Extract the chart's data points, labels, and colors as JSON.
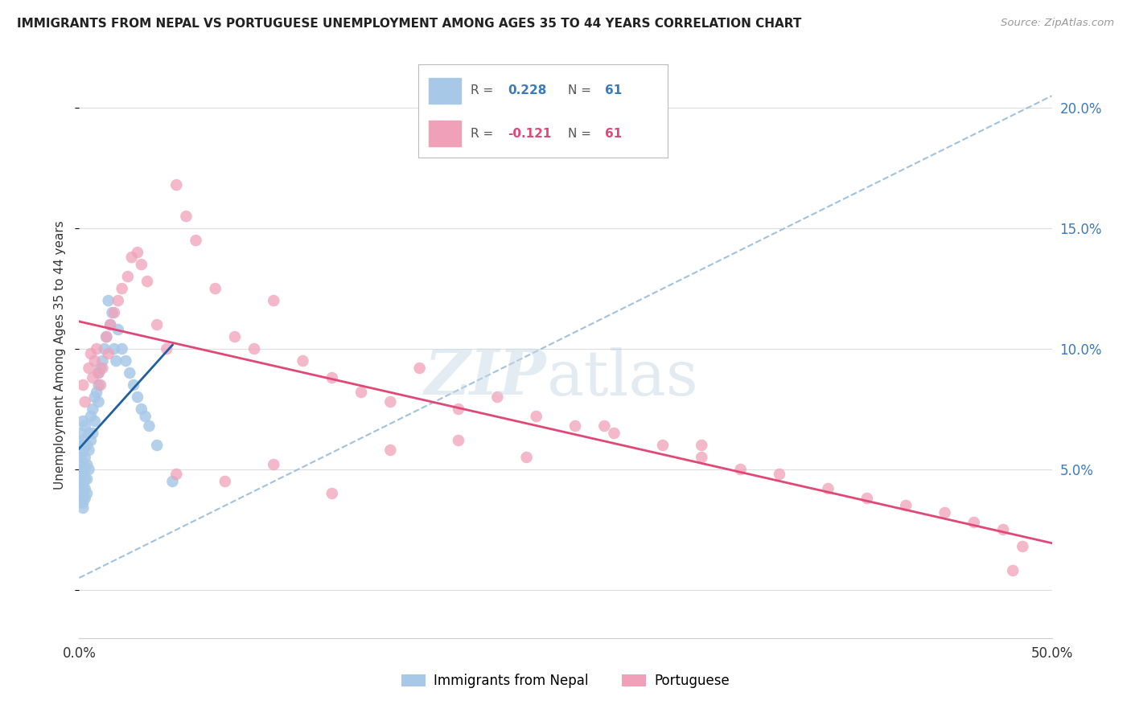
{
  "title": "IMMIGRANTS FROM NEPAL VS PORTUGUESE UNEMPLOYMENT AMONG AGES 35 TO 44 YEARS CORRELATION CHART",
  "source": "Source: ZipAtlas.com",
  "ylabel": "Unemployment Among Ages 35 to 44 years",
  "xlim": [
    0.0,
    0.5
  ],
  "ylim": [
    -0.02,
    0.215
  ],
  "yticks": [
    0.0,
    0.05,
    0.1,
    0.15,
    0.2
  ],
  "ytick_labels": [
    "",
    "5.0%",
    "10.0%",
    "15.0%",
    "20.0%"
  ],
  "xticks": [
    0.0,
    0.1,
    0.2,
    0.3,
    0.4,
    0.5
  ],
  "xtick_labels": [
    "0.0%",
    "",
    "",
    "",
    "",
    "50.0%"
  ],
  "nepal_R": 0.228,
  "nepal_N": 61,
  "port_R": -0.121,
  "port_N": 61,
  "nepal_color": "#a8c8e8",
  "nepal_line_color": "#2060a0",
  "port_color": "#f0a0b8",
  "port_line_color": "#e04878",
  "dashed_line_color": "#90b8d8",
  "nepal_x": [
    0.001,
    0.001,
    0.001,
    0.001,
    0.001,
    0.001,
    0.001,
    0.002,
    0.002,
    0.002,
    0.002,
    0.002,
    0.002,
    0.002,
    0.002,
    0.002,
    0.002,
    0.003,
    0.003,
    0.003,
    0.003,
    0.003,
    0.003,
    0.003,
    0.004,
    0.004,
    0.004,
    0.004,
    0.005,
    0.005,
    0.005,
    0.006,
    0.006,
    0.007,
    0.007,
    0.008,
    0.008,
    0.009,
    0.01,
    0.01,
    0.01,
    0.011,
    0.012,
    0.013,
    0.014,
    0.015,
    0.016,
    0.017,
    0.018,
    0.019,
    0.02,
    0.022,
    0.024,
    0.026,
    0.028,
    0.03,
    0.032,
    0.034,
    0.036,
    0.04,
    0.048
  ],
  "nepal_y": [
    0.055,
    0.06,
    0.065,
    0.05,
    0.045,
    0.04,
    0.048,
    0.07,
    0.062,
    0.058,
    0.052,
    0.048,
    0.044,
    0.042,
    0.038,
    0.036,
    0.034,
    0.068,
    0.06,
    0.055,
    0.05,
    0.046,
    0.042,
    0.038,
    0.06,
    0.052,
    0.046,
    0.04,
    0.065,
    0.058,
    0.05,
    0.072,
    0.062,
    0.075,
    0.065,
    0.08,
    0.07,
    0.082,
    0.09,
    0.085,
    0.078,
    0.092,
    0.095,
    0.1,
    0.105,
    0.12,
    0.11,
    0.115,
    0.1,
    0.095,
    0.108,
    0.1,
    0.095,
    0.09,
    0.085,
    0.08,
    0.075,
    0.072,
    0.068,
    0.06,
    0.045
  ],
  "port_x": [
    0.002,
    0.003,
    0.005,
    0.006,
    0.007,
    0.008,
    0.009,
    0.01,
    0.011,
    0.012,
    0.014,
    0.015,
    0.016,
    0.018,
    0.02,
    0.022,
    0.025,
    0.027,
    0.03,
    0.032,
    0.035,
    0.04,
    0.045,
    0.05,
    0.055,
    0.06,
    0.07,
    0.08,
    0.09,
    0.1,
    0.115,
    0.13,
    0.145,
    0.16,
    0.175,
    0.195,
    0.215,
    0.235,
    0.255,
    0.275,
    0.3,
    0.32,
    0.34,
    0.36,
    0.385,
    0.405,
    0.425,
    0.445,
    0.46,
    0.475,
    0.485,
    0.05,
    0.075,
    0.1,
    0.13,
    0.16,
    0.195,
    0.23,
    0.27,
    0.32,
    0.48
  ],
  "port_y": [
    0.085,
    0.078,
    0.092,
    0.098,
    0.088,
    0.095,
    0.1,
    0.09,
    0.085,
    0.092,
    0.105,
    0.098,
    0.11,
    0.115,
    0.12,
    0.125,
    0.13,
    0.138,
    0.14,
    0.135,
    0.128,
    0.11,
    0.1,
    0.168,
    0.155,
    0.145,
    0.125,
    0.105,
    0.1,
    0.12,
    0.095,
    0.088,
    0.082,
    0.078,
    0.092,
    0.075,
    0.08,
    0.072,
    0.068,
    0.065,
    0.06,
    0.055,
    0.05,
    0.048,
    0.042,
    0.038,
    0.035,
    0.032,
    0.028,
    0.025,
    0.018,
    0.048,
    0.045,
    0.052,
    0.04,
    0.058,
    0.062,
    0.055,
    0.068,
    0.06,
    0.008
  ]
}
